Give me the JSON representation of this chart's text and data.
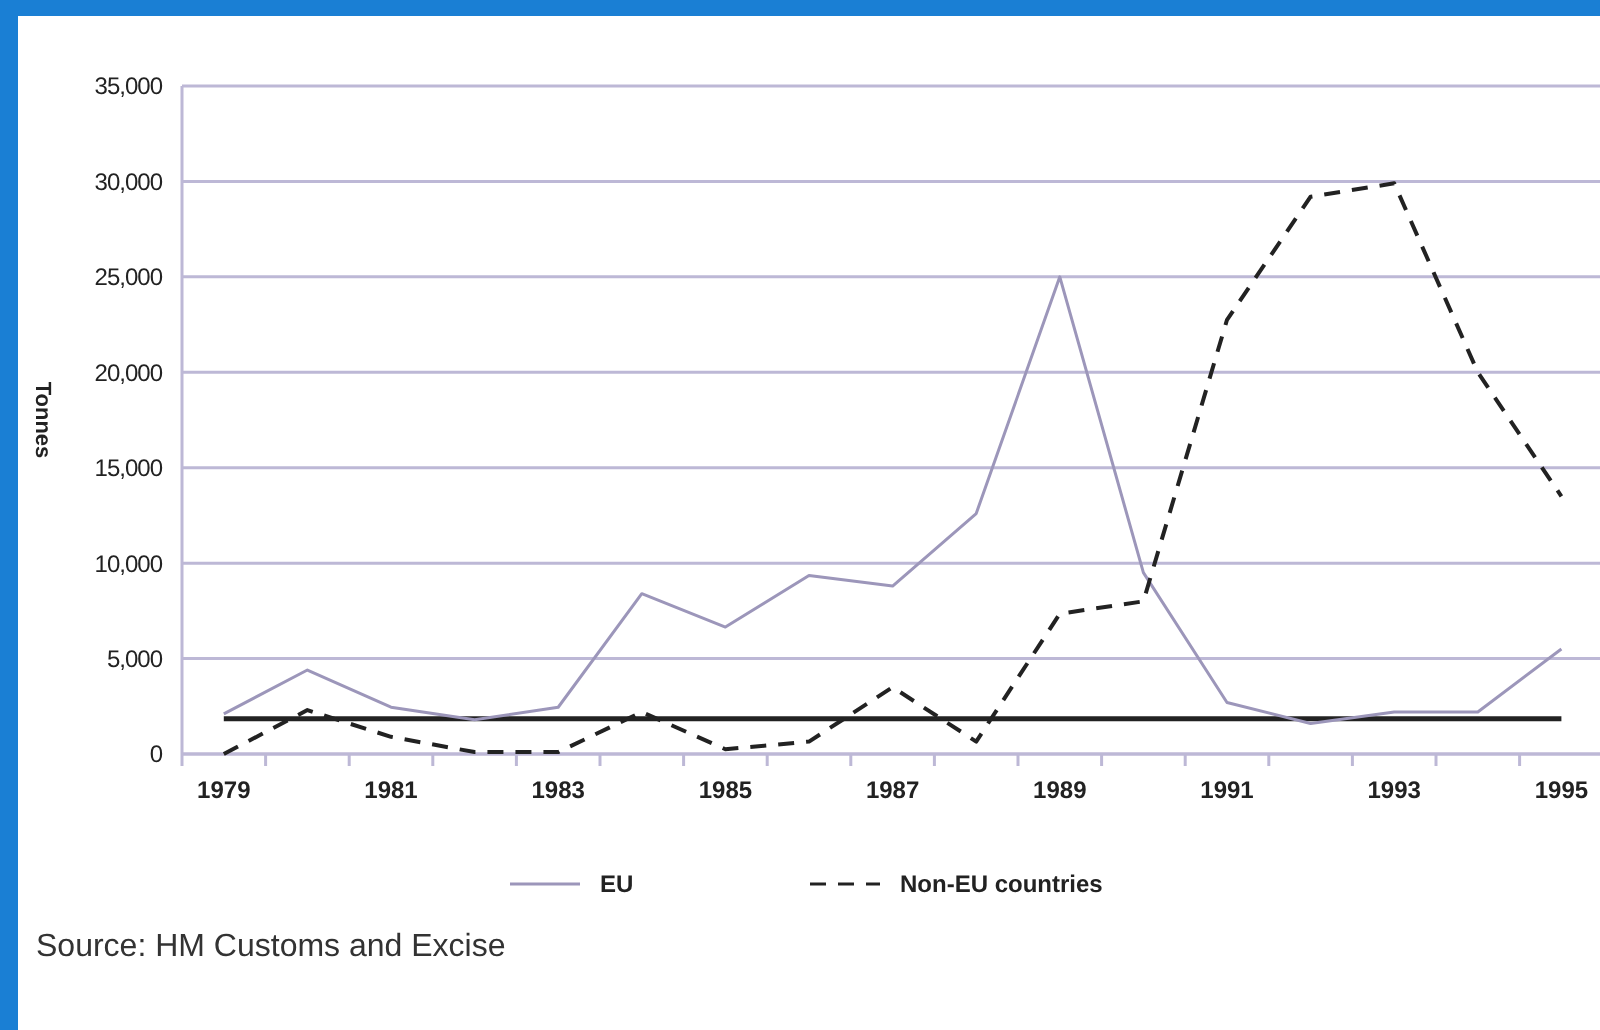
{
  "chart_data": {
    "type": "line",
    "ylabel": "Tonnes",
    "categories": [
      "1979",
      null,
      "1981",
      null,
      "1983",
      null,
      "1985",
      null,
      "1987",
      null,
      "1989",
      null,
      "1991",
      null,
      "1993",
      null,
      "1995"
    ],
    "series": [
      {
        "name": "EU",
        "color": "#9c96ba",
        "values": [
          2100,
          4400,
          2450,
          1800,
          2450,
          8400,
          6650,
          9350,
          8800,
          12600,
          25000,
          9500,
          2700,
          1600,
          2200,
          2200,
          5500
        ]
      },
      {
        "name": "Non-EU countries",
        "color": "#222222",
        "line_style": "dashed",
        "values": [
          0,
          2300,
          900,
          100,
          100,
          2200,
          250,
          650,
          3500,
          650,
          7350,
          8000,
          22750,
          29200,
          29900,
          20000,
          13500
        ]
      }
    ],
    "ylim": [
      0,
      35000
    ],
    "yticks": [
      0,
      {
        "value": 5000,
        "label": "5,000"
      },
      {
        "value": 10000,
        "label": "10,000"
      },
      {
        "value": 15000,
        "label": "15,000"
      },
      {
        "value": 20000,
        "label": "20,000"
      },
      {
        "value": 25000,
        "label": "25,000"
      },
      {
        "value": 30000,
        "label": "30,000"
      },
      {
        "value": 35000,
        "label": "35,000"
      }
    ],
    "grid": "y",
    "legend": "bottom",
    "marker": "none",
    "ref_lines": [
      {
        "axis": "y",
        "value": 1850,
        "color": "#222222"
      }
    ],
    "annotations": [
      "Source: HM Customs and Excise"
    ]
  }
}
